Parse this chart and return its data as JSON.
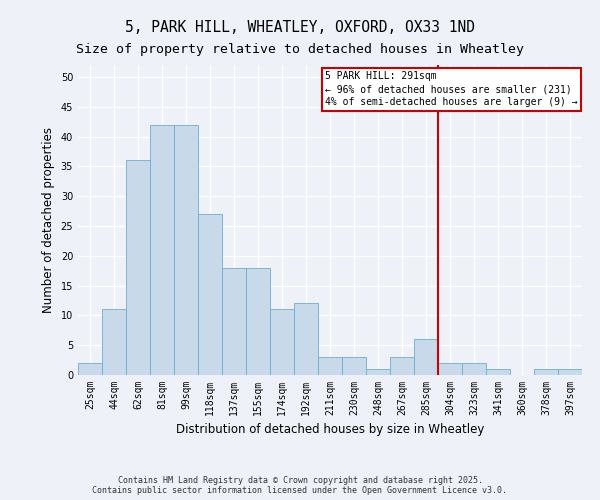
{
  "title": "5, PARK HILL, WHEATLEY, OXFORD, OX33 1ND",
  "subtitle": "Size of property relative to detached houses in Wheatley",
  "xlabel": "Distribution of detached houses by size in Wheatley",
  "ylabel": "Number of detached properties",
  "footer_line1": "Contains HM Land Registry data © Crown copyright and database right 2025.",
  "footer_line2": "Contains public sector information licensed under the Open Government Licence v3.0.",
  "bin_labels": [
    "25sqm",
    "44sqm",
    "62sqm",
    "81sqm",
    "99sqm",
    "118sqm",
    "137sqm",
    "155sqm",
    "174sqm",
    "192sqm",
    "211sqm",
    "230sqm",
    "248sqm",
    "267sqm",
    "285sqm",
    "304sqm",
    "323sqm",
    "341sqm",
    "360sqm",
    "378sqm",
    "397sqm"
  ],
  "bar_values": [
    2,
    11,
    36,
    42,
    42,
    27,
    18,
    18,
    11,
    12,
    3,
    3,
    1,
    3,
    6,
    2,
    2,
    1,
    0,
    1,
    1
  ],
  "bar_color": "#c8daea",
  "bar_edge_color": "#6aaed6",
  "vline_x_index": 14.5,
  "vline_color": "#cc0000",
  "annotation_text": "5 PARK HILL: 291sqm\n← 96% of detached houses are smaller (231)\n4% of semi-detached houses are larger (9) →",
  "annotation_box_facecolor": "#ffffff",
  "annotation_box_edgecolor": "#cc0000",
  "ylim": [
    0,
    52
  ],
  "yticks": [
    0,
    5,
    10,
    15,
    20,
    25,
    30,
    35,
    40,
    45,
    50
  ],
  "bg_color": "#eef2f8",
  "plot_bg_color": "#eef2f8",
  "grid_color": "#ffffff",
  "title_fontsize": 10.5,
  "subtitle_fontsize": 9.5,
  "axis_label_fontsize": 8.5,
  "tick_fontsize": 7,
  "annotation_fontsize": 7,
  "footer_fontsize": 6
}
